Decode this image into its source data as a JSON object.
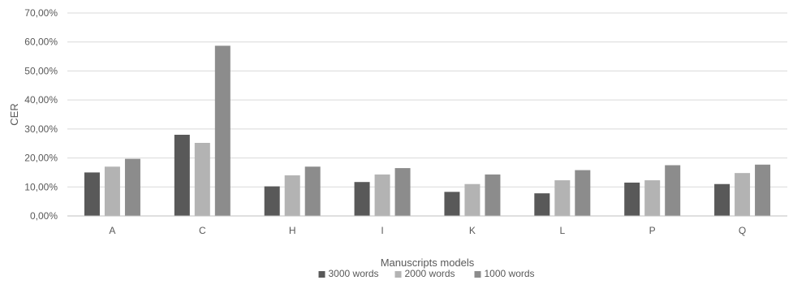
{
  "chart_data": {
    "type": "bar",
    "categories": [
      "A",
      "C",
      "H",
      "I",
      "K",
      "L",
      "P",
      "Q"
    ],
    "series": [
      {
        "name": "3000 words",
        "color": "#595959",
        "values": [
          15.0,
          28.0,
          10.2,
          11.7,
          8.3,
          7.8,
          11.5,
          11.0
        ]
      },
      {
        "name": "2000 words",
        "color": "#b3b3b3",
        "values": [
          17.0,
          25.2,
          14.0,
          14.3,
          11.0,
          12.3,
          12.3,
          14.8
        ]
      },
      {
        "name": "1000 words",
        "color": "#8c8c8c",
        "values": [
          19.7,
          58.7,
          17.0,
          16.5,
          14.3,
          15.8,
          17.5,
          17.7
        ]
      }
    ],
    "title": "",
    "xlabel": "Manuscripts models",
    "ylabel": "CER",
    "ylim": [
      0,
      70
    ],
    "yticks": [
      0,
      10,
      20,
      30,
      40,
      50,
      60,
      70
    ],
    "ytick_labels": [
      "0,00%",
      "10,00%",
      "20,00%",
      "30,00%",
      "40,00%",
      "50,00%",
      "60,00%",
      "70,00%"
    ],
    "grid": true,
    "legend_position": "bottom",
    "colors": {
      "gridline": "#d9d9d9",
      "axis": "#bfbfbf",
      "text": "#595959"
    }
  }
}
